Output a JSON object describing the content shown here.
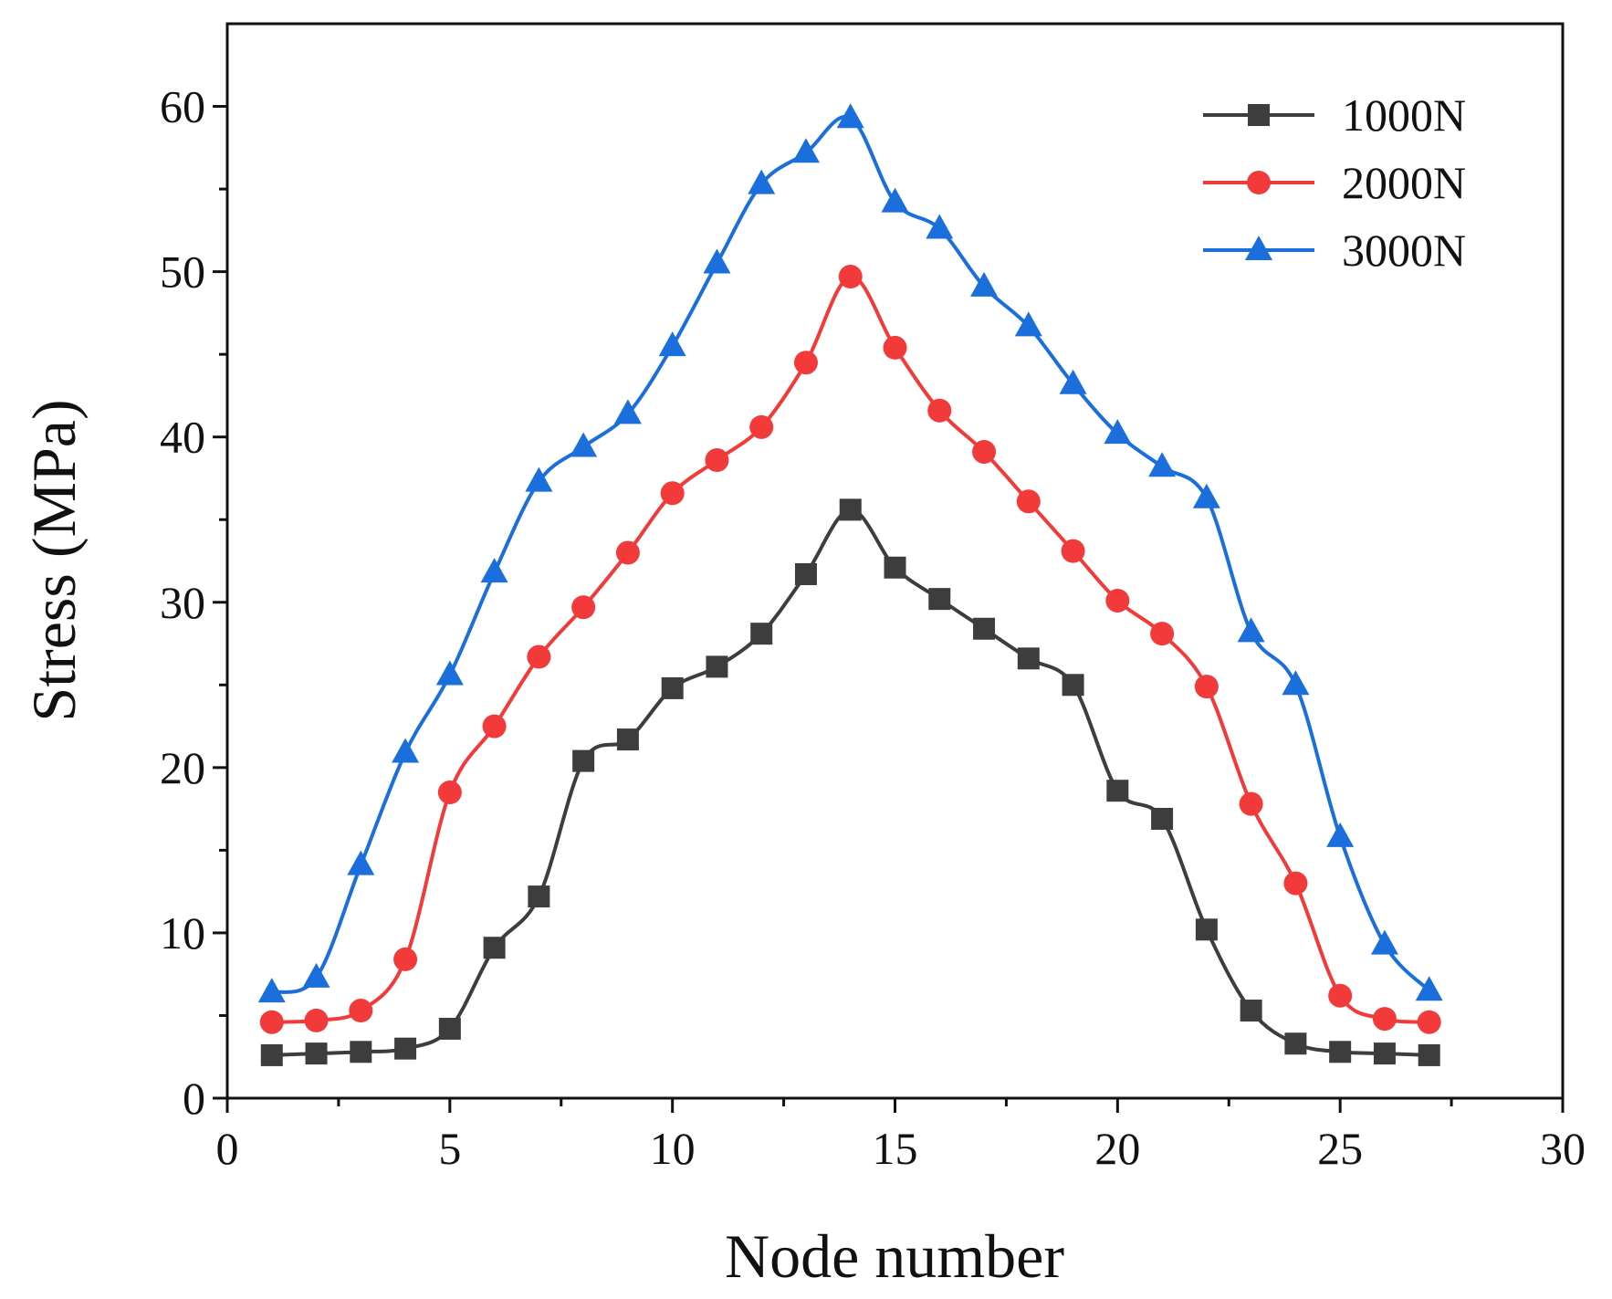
{
  "chart_data": {
    "type": "line",
    "title": "",
    "xlabel": "Node number",
    "ylabel": "Stress (MPa)",
    "xlim": [
      0,
      30
    ],
    "ylim": [
      0,
      65
    ],
    "xticks": [
      0,
      5,
      10,
      15,
      20,
      25,
      30
    ],
    "yticks": [
      0,
      10,
      20,
      30,
      40,
      50,
      60
    ],
    "grid": false,
    "legend_position": "top-right",
    "x": [
      1,
      2,
      3,
      4,
      5,
      6,
      7,
      8,
      9,
      10,
      11,
      12,
      13,
      14,
      15,
      16,
      17,
      18,
      19,
      20,
      21,
      22,
      23,
      24,
      25,
      26,
      27
    ],
    "series": [
      {
        "name": "1000N",
        "color": "#3d3d3d",
        "marker": "square",
        "values": [
          2.6,
          2.7,
          2.8,
          3.0,
          4.2,
          9.1,
          12.2,
          20.4,
          21.7,
          24.8,
          26.1,
          28.1,
          31.7,
          35.6,
          32.1,
          30.2,
          28.4,
          26.6,
          25.0,
          18.6,
          16.9,
          10.2,
          5.3,
          3.3,
          2.8,
          2.7,
          2.6
        ]
      },
      {
        "name": "2000N",
        "color": "#f23a3a",
        "marker": "circle",
        "values": [
          4.6,
          4.7,
          5.3,
          8.4,
          18.5,
          22.5,
          26.7,
          29.7,
          33.0,
          36.6,
          38.6,
          40.6,
          44.5,
          49.7,
          45.4,
          41.6,
          39.1,
          36.1,
          33.1,
          30.1,
          28.1,
          24.9,
          17.8,
          13.0,
          6.2,
          4.8,
          4.6
        ]
      },
      {
        "name": "3000N",
        "color": "#1a6fdc",
        "marker": "triangle",
        "values": [
          6.4,
          7.3,
          14.1,
          20.9,
          25.6,
          31.8,
          37.3,
          39.4,
          41.4,
          45.5,
          50.5,
          55.3,
          57.2,
          59.3,
          54.2,
          52.6,
          49.1,
          46.7,
          43.2,
          40.2,
          38.2,
          36.3,
          28.2,
          25.0,
          15.8,
          9.3,
          6.5
        ]
      }
    ]
  }
}
